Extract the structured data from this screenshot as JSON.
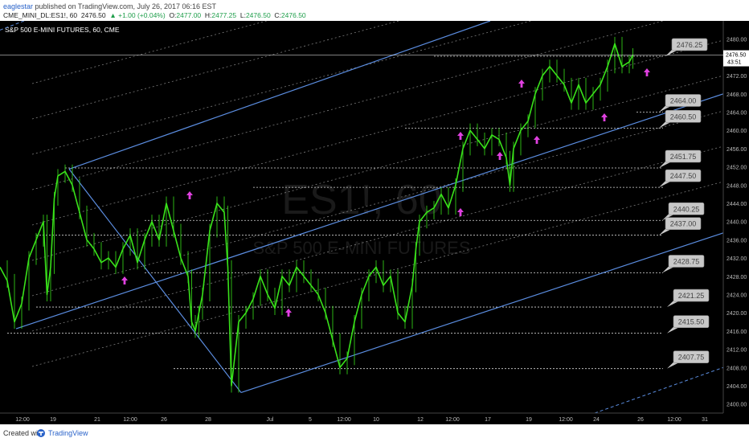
{
  "header": {
    "author": "eaglestar",
    "published_text": "published on TradingView.com, July 26, 2017 06:16 EST",
    "symbol": "CME_MINI_DL:ES1!, 60",
    "last": "2476.50",
    "change": "▲ +1.00 (+0.04%)",
    "o_label": "O:",
    "o_value": "2477.00",
    "h_label": "H:",
    "h_value": "2477.25",
    "l_label": "L:",
    "l_value": "2476.50",
    "c_label": "C:",
    "c_value": "2476.50"
  },
  "chart_title": "S&P 500 E-MINI FUTURES, 60, CME",
  "watermark": {
    "ticker": "ES1!, 60",
    "name": "S&P 500 E-MINI FUTURES"
  },
  "price_box": {
    "value": "2476.50",
    "countdown": "43:51"
  },
  "colors": {
    "background": "#000000",
    "candles": "#39e21a",
    "channel": "#5b8de0",
    "arrows": "#e040e0",
    "label_box": "#c8c8c8"
  },
  "footer": {
    "created_with": "Created with",
    "brand": "TradingView"
  },
  "chart_data": {
    "type": "line",
    "title": "S&P 500 E-MINI FUTURES, 60, CME",
    "ylim": [
      2398,
      2484
    ],
    "x_ticks": [
      "12:00",
      "19",
      "21",
      "12:00",
      "26",
      "28",
      "Jul",
      "5",
      "12:00",
      "10",
      "12",
      "12:00",
      "17",
      "19",
      "12:00",
      "24",
      "26",
      "12:00",
      "31"
    ],
    "y_ticks": [
      "2480.00",
      "2476.00",
      "2472.00",
      "2468.00",
      "2464.00",
      "2460.00",
      "2456.00",
      "2452.00",
      "2448.00",
      "2444.00",
      "2440.00",
      "2436.00",
      "2432.00",
      "2428.00",
      "2424.00",
      "2420.00",
      "2416.00",
      "2412.00",
      "2408.00",
      "2404.00",
      "2400.00"
    ],
    "levels": [
      "2476.25",
      "2464.00",
      "2460.50",
      "2451.75",
      "2447.50",
      "2440.25",
      "2437.00",
      "2428.75",
      "2421.25",
      "2415.50",
      "2407.75"
    ],
    "series": [
      {
        "values": [
          [
            0.0,
            2430
          ],
          [
            0.01,
            2427
          ],
          [
            0.02,
            2418
          ],
          [
            0.03,
            2422
          ],
          [
            0.04,
            2432
          ],
          [
            0.05,
            2436
          ],
          [
            0.06,
            2440
          ],
          [
            0.065,
            2424
          ],
          [
            0.07,
            2430
          ],
          [
            0.075,
            2445
          ],
          [
            0.08,
            2450
          ],
          [
            0.09,
            2451
          ],
          [
            0.1,
            2448
          ],
          [
            0.11,
            2442
          ],
          [
            0.12,
            2436
          ],
          [
            0.13,
            2434
          ],
          [
            0.14,
            2431
          ],
          [
            0.15,
            2432
          ],
          [
            0.16,
            2430
          ],
          [
            0.17,
            2434
          ],
          [
            0.18,
            2437
          ],
          [
            0.19,
            2431
          ],
          [
            0.2,
            2436
          ],
          [
            0.21,
            2440
          ],
          [
            0.22,
            2436
          ],
          [
            0.23,
            2444
          ],
          [
            0.24,
            2438
          ],
          [
            0.25,
            2432
          ],
          [
            0.26,
            2428
          ],
          [
            0.265,
            2418
          ],
          [
            0.27,
            2416
          ],
          [
            0.275,
            2420
          ],
          [
            0.28,
            2424
          ],
          [
            0.29,
            2438
          ],
          [
            0.3,
            2444
          ],
          [
            0.31,
            2442
          ],
          [
            0.315,
            2430
          ],
          [
            0.32,
            2404
          ],
          [
            0.33,
            2418
          ],
          [
            0.34,
            2420
          ],
          [
            0.35,
            2423
          ],
          [
            0.36,
            2428
          ],
          [
            0.37,
            2424
          ],
          [
            0.38,
            2421
          ],
          [
            0.39,
            2428
          ],
          [
            0.4,
            2426
          ],
          [
            0.41,
            2430
          ],
          [
            0.42,
            2428
          ],
          [
            0.43,
            2426
          ],
          [
            0.44,
            2424
          ],
          [
            0.45,
            2420
          ],
          [
            0.46,
            2414
          ],
          [
            0.47,
            2408
          ],
          [
            0.48,
            2410
          ],
          [
            0.49,
            2418
          ],
          [
            0.5,
            2424
          ],
          [
            0.51,
            2428
          ],
          [
            0.52,
            2430
          ],
          [
            0.53,
            2426
          ],
          [
            0.54,
            2428
          ],
          [
            0.55,
            2420
          ],
          [
            0.56,
            2418
          ],
          [
            0.57,
            2426
          ],
          [
            0.575,
            2434
          ],
          [
            0.58,
            2440
          ],
          [
            0.59,
            2442
          ],
          [
            0.6,
            2443
          ],
          [
            0.61,
            2446
          ],
          [
            0.62,
            2443
          ],
          [
            0.63,
            2448
          ],
          [
            0.64,
            2456
          ],
          [
            0.65,
            2460
          ],
          [
            0.66,
            2458
          ],
          [
            0.67,
            2456
          ],
          [
            0.68,
            2459
          ],
          [
            0.69,
            2458
          ],
          [
            0.7,
            2454
          ],
          [
            0.705,
            2448
          ],
          [
            0.71,
            2456
          ],
          [
            0.72,
            2460
          ],
          [
            0.73,
            2462
          ],
          [
            0.74,
            2468
          ],
          [
            0.75,
            2472
          ],
          [
            0.76,
            2474
          ],
          [
            0.77,
            2472
          ],
          [
            0.78,
            2470
          ],
          [
            0.79,
            2466
          ],
          [
            0.8,
            2470
          ],
          [
            0.81,
            2466
          ],
          [
            0.82,
            2468
          ],
          [
            0.83,
            2470
          ],
          [
            0.84,
            2474
          ],
          [
            0.85,
            2479
          ],
          [
            0.86,
            2474
          ],
          [
            0.87,
            2475
          ],
          [
            0.875,
            2476.5
          ]
        ]
      }
    ]
  }
}
